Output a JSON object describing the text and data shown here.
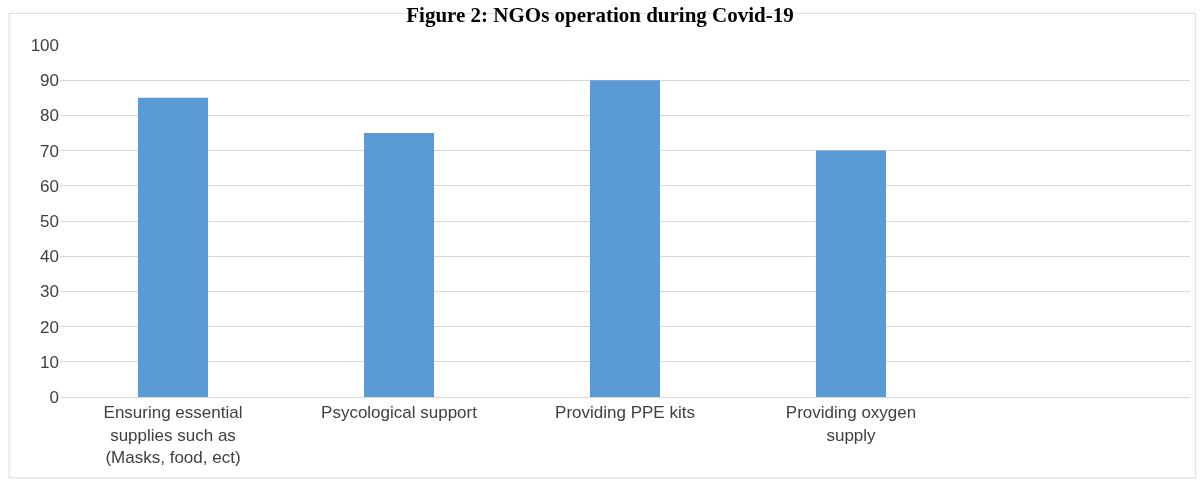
{
  "chart_data": {
    "type": "bar",
    "title": "Figure 2: NGOs operation during Covid-19",
    "categories": [
      "Ensuring essential\nsupplies such as\n(Masks, food, ect)",
      "Psycological support",
      "Providing PPE kits",
      "Providing oxygen\nsupply",
      null
    ],
    "values": [
      85,
      75,
      90,
      70,
      null
    ],
    "color": "#5b9bd5",
    "ylim": [
      0,
      100
    ],
    "yticks": [
      0,
      10,
      20,
      30,
      40,
      50,
      60,
      70,
      80,
      90,
      100
    ],
    "grid": "y"
  }
}
